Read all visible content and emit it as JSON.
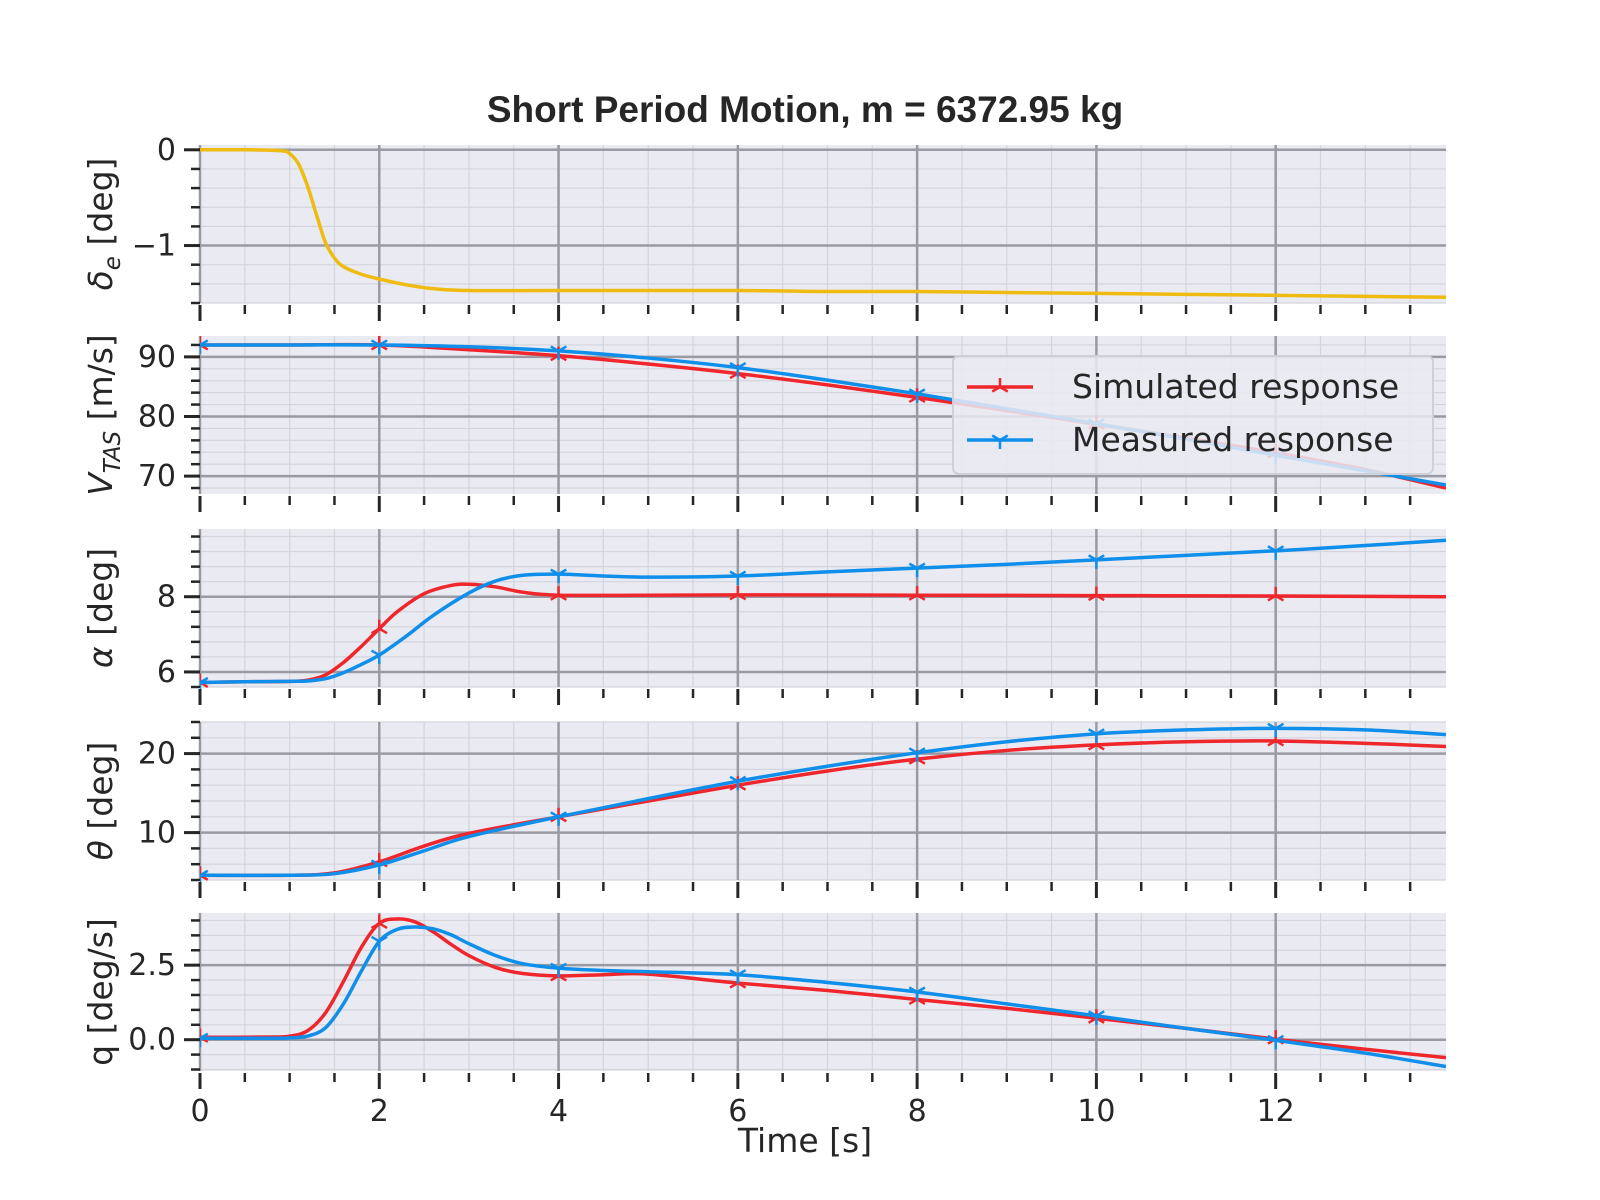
{
  "chart_data": {
    "type": "line",
    "title": "Short Period Motion, m = 6372.95 kg",
    "xlabel": "Time [s]",
    "xlim": [
      0,
      13.9
    ],
    "xticks": [
      0,
      2,
      4,
      6,
      8,
      10,
      12
    ],
    "xtick_labels": [
      "0",
      "2",
      "4",
      "6",
      "8",
      "10",
      "12"
    ],
    "grid": true,
    "colors": {
      "input": "#eebb11",
      "simulated": "#f0262d",
      "measured": "#0f8fea",
      "panel_bg": "#eaeaf2",
      "grid_major": "#9a9aa2",
      "grid_minor": "#d4d4dc"
    },
    "legend": {
      "placement": "inside second panel, right",
      "entries": [
        {
          "label": "Simulated response",
          "color": "#f0262d",
          "marker": "1"
        },
        {
          "label": "Measured response",
          "color": "#0f8fea",
          "marker": "2"
        }
      ]
    },
    "panels": [
      {
        "ylabel_main": "δ",
        "ylabel_sub": "e",
        "ylabel_rest": " [deg]",
        "ylim": [
          -1.6,
          0.05
        ],
        "yticks": [
          0,
          -1
        ],
        "ytick_labels": [
          "0",
          "−1"
        ],
        "series": [
          {
            "role": "input",
            "x": [
              0,
              0.5,
              0.9,
              1.0,
              1.1,
              1.2,
              1.3,
              1.4,
              1.5,
              1.6,
              1.8,
              2.0,
              2.3,
              2.6,
              3.0,
              4.0,
              6.0,
              7.0,
              8.0,
              9.0,
              10.0,
              11.0,
              12.0,
              13.9
            ],
            "y": [
              0,
              0,
              -0.01,
              -0.04,
              -0.15,
              -0.38,
              -0.68,
              -0.97,
              -1.13,
              -1.22,
              -1.3,
              -1.35,
              -1.41,
              -1.45,
              -1.47,
              -1.47,
              -1.47,
              -1.48,
              -1.48,
              -1.49,
              -1.5,
              -1.51,
              -1.52,
              -1.54
            ]
          }
        ]
      },
      {
        "ylabel_main": "V",
        "ylabel_sub": "TAS",
        "ylabel_rest": " [m/s]",
        "ylim": [
          67,
          93.5
        ],
        "yticks": [
          70,
          80,
          90
        ],
        "ytick_labels": [
          "70",
          "80",
          "90"
        ],
        "series": [
          {
            "role": "simulated",
            "x": [
              0,
              1,
              2,
              3,
              4,
              5,
              6,
              7,
              8,
              9,
              10,
              11,
              12,
              13,
              13.9
            ],
            "y": [
              92,
              92,
              92,
              91.2,
              90.2,
              88.8,
              87.2,
              85.3,
              83.2,
              81,
              78.7,
              76.4,
              73.9,
              71.1,
              68.0
            ]
          },
          {
            "role": "measured",
            "x": [
              0,
              1,
              2,
              3,
              4,
              5,
              6,
              7,
              8,
              9,
              10,
              11,
              12,
              13,
              13.9
            ],
            "y": [
              92,
              92,
              92,
              91.7,
              91,
              89.8,
              88.2,
              86.1,
              83.8,
              81.3,
              78.8,
              76.2,
              73.5,
              70.9,
              68.5
            ]
          }
        ]
      },
      {
        "ylabel_main": "α",
        "ylabel_sub": "",
        "ylabel_rest": " [deg]",
        "ylim": [
          5.6,
          9.8
        ],
        "yticks": [
          6,
          8
        ],
        "ytick_labels": [
          "6",
          "8"
        ],
        "series": [
          {
            "role": "simulated",
            "x": [
              0,
              0.5,
              1.0,
              1.2,
              1.4,
              1.6,
              1.8,
              2.0,
              2.2,
              2.5,
              2.8,
              3.0,
              3.3,
              3.6,
              4.0,
              5,
              6,
              8,
              10,
              12,
              13.9
            ],
            "y": [
              5.72,
              5.74,
              5.75,
              5.78,
              5.92,
              6.25,
              6.68,
              7.15,
              7.6,
              8.08,
              8.3,
              8.33,
              8.26,
              8.12,
              8.04,
              8.04,
              8.05,
              8.04,
              8.03,
              8.02,
              8.0
            ]
          },
          {
            "role": "measured",
            "x": [
              0,
              0.5,
              1.0,
              1.2,
              1.4,
              1.6,
              1.8,
              2.0,
              2.3,
              2.6,
              3.0,
              3.3,
              3.6,
              4.0,
              4.5,
              5.0,
              6,
              7,
              8,
              9,
              10,
              11,
              12,
              13,
              13.9
            ],
            "y": [
              5.72,
              5.74,
              5.75,
              5.76,
              5.82,
              5.98,
              6.2,
              6.45,
              6.95,
              7.5,
              8.1,
              8.42,
              8.57,
              8.6,
              8.55,
              8.52,
              8.55,
              8.66,
              8.76,
              8.86,
              8.98,
              9.1,
              9.22,
              9.36,
              9.5
            ]
          }
        ]
      },
      {
        "ylabel_main": "θ",
        "ylabel_sub": "",
        "ylabel_rest": " [deg]",
        "ylim": [
          4,
          24
        ],
        "yticks": [
          10,
          20
        ],
        "ytick_labels": [
          "10",
          "20"
        ],
        "series": [
          {
            "role": "simulated",
            "x": [
              0,
              1,
              1.5,
              2,
              2.5,
              3,
              4,
              5,
              6,
              7,
              8,
              9,
              10,
              11,
              12,
              13,
              13.9
            ],
            "y": [
              4.6,
              4.6,
              4.9,
              6.3,
              8.3,
              9.9,
              12,
              14.0,
              16.0,
              17.8,
              19.3,
              20.4,
              21.1,
              21.5,
              21.6,
              21.3,
              20.9
            ]
          },
          {
            "role": "measured",
            "x": [
              0,
              1,
              1.5,
              2,
              2.5,
              3,
              4,
              5,
              6,
              7,
              8,
              9,
              10,
              11,
              12,
              13,
              13.9
            ],
            "y": [
              4.6,
              4.6,
              4.8,
              5.9,
              7.7,
              9.5,
              12,
              14.3,
              16.5,
              18.4,
              20.1,
              21.5,
              22.5,
              23.0,
              23.2,
              23.0,
              22.4
            ]
          }
        ]
      },
      {
        "ylabel_main": "q",
        "ylabel_sub": "",
        "ylabel_rest": " [deg/s]",
        "ylim": [
          -1.05,
          4.25
        ],
        "yticks": [
          0,
          2.5
        ],
        "ytick_labels": [
          "0.0",
          "2.5"
        ],
        "series": [
          {
            "role": "simulated",
            "x": [
              0,
              0.8,
              1.0,
              1.2,
              1.4,
              1.6,
              1.8,
              2.0,
              2.2,
              2.4,
              2.6,
              2.8,
              3.0,
              3.3,
              3.6,
              4.0,
              4.5,
              5,
              6,
              7,
              8,
              9,
              10,
              11,
              12,
              13,
              13.9
            ],
            "y": [
              0.08,
              0.09,
              0.12,
              0.3,
              0.9,
              1.95,
              3.1,
              3.9,
              4.05,
              3.95,
              3.62,
              3.2,
              2.82,
              2.42,
              2.22,
              2.14,
              2.18,
              2.2,
              1.9,
              1.65,
              1.35,
              1.05,
              0.72,
              0.38,
              0.02,
              -0.32,
              -0.6
            ]
          },
          {
            "role": "measured",
            "x": [
              0,
              0.8,
              1.0,
              1.2,
              1.4,
              1.6,
              1.8,
              2.0,
              2.2,
              2.4,
              2.6,
              2.8,
              3.0,
              3.3,
              3.6,
              4.0,
              4.5,
              5,
              6,
              7,
              8,
              9,
              10,
              11,
              12,
              13,
              13.9
            ],
            "y": [
              0.05,
              0.05,
              0.06,
              0.12,
              0.4,
              1.2,
              2.3,
              3.3,
              3.7,
              3.78,
              3.72,
              3.52,
              3.22,
              2.82,
              2.55,
              2.4,
              2.32,
              2.28,
              2.18,
              1.92,
              1.6,
              1.2,
              0.8,
              0.38,
              -0.02,
              -0.45,
              -0.9
            ]
          }
        ]
      }
    ]
  }
}
